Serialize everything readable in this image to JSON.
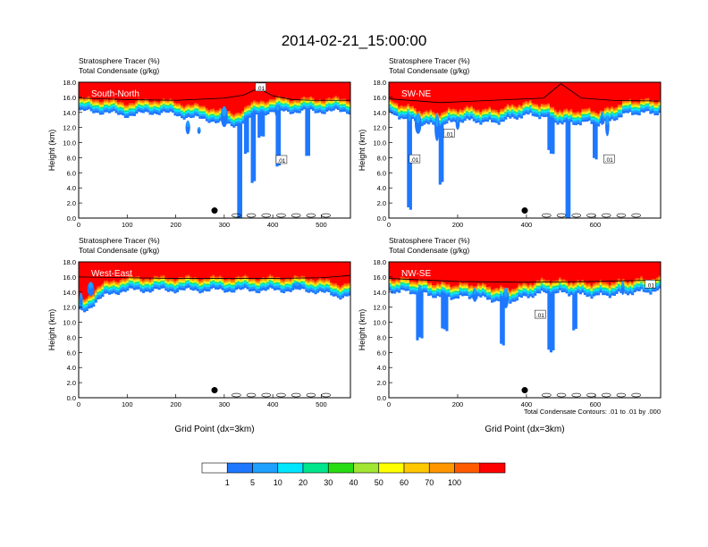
{
  "figure": {
    "title": "2014-02-21_15:00:00",
    "footnote": "Total Condensate Contours: .01 to .01 by .000"
  },
  "colorbar": {
    "colors": [
      "#ffffff",
      "#1e78ff",
      "#1ea0ff",
      "#00e6ff",
      "#00e68c",
      "#28dc14",
      "#a0e632",
      "#ffff00",
      "#ffc800",
      "#ff9600",
      "#ff5a00",
      "#ff0000"
    ],
    "labels": [
      "1",
      "5",
      "10",
      "20",
      "30",
      "40",
      "50",
      "60",
      "70",
      "100"
    ]
  },
  "chart_data": [
    {
      "type": "heatmap",
      "panel_label": "South-North",
      "title_line1": "Stratosphere Tracer   (%)",
      "title_line2": "Total Condensate   (g/kg)",
      "ylabel": "Height (km)",
      "xlabel": "",
      "xlim": [
        0,
        560
      ],
      "ylim": [
        0,
        18
      ],
      "xticks": [
        "0",
        "100",
        "200",
        "300",
        "400",
        "500"
      ],
      "yticks": [
        "0.0",
        "2.0",
        "4.0",
        "6.0",
        "8.0",
        "10.0",
        "12.0",
        "14.0",
        "16.0",
        "18.0"
      ],
      "marker": {
        "x": 280,
        "y": 1.0
      },
      "contour_labels": [
        {
          "text": ".01",
          "x": 375,
          "y": 17.3
        },
        {
          "text": ".01",
          "x": 418,
          "y": 7.7
        }
      ],
      "tropopause": [
        [
          0,
          15.9
        ],
        [
          100,
          15.7
        ],
        [
          200,
          15.6
        ],
        [
          300,
          15.9
        ],
        [
          340,
          16.3
        ],
        [
          370,
          17.2
        ],
        [
          400,
          16.2
        ],
        [
          440,
          15.7
        ],
        [
          480,
          15.6
        ],
        [
          560,
          15.6
        ]
      ]
    },
    {
      "type": "heatmap",
      "panel_label": "SW-NE",
      "title_line1": "Stratosphere Tracer   (%)",
      "title_line2": "Total Condensate   (g/kg)",
      "ylabel": "Height (km)",
      "xlabel": "",
      "xlim": [
        0,
        790
      ],
      "ylim": [
        0,
        18
      ],
      "xticks": [
        "0",
        "200",
        "400",
        "600"
      ],
      "yticks": [
        "0.0",
        "2.0",
        "4.0",
        "6.0",
        "8.0",
        "10.0",
        "12.0",
        "14.0",
        "16.0",
        "18.0"
      ],
      "marker": {
        "x": 395,
        "y": 1.0
      },
      "contour_labels": [
        {
          "text": ".01",
          "x": 75,
          "y": 7.8
        },
        {
          "text": ".01",
          "x": 175,
          "y": 11.2
        },
        {
          "text": ".01",
          "x": 640,
          "y": 7.8
        }
      ],
      "tropopause": [
        [
          0,
          15.8
        ],
        [
          150,
          15.3
        ],
        [
          300,
          15.6
        ],
        [
          450,
          15.9
        ],
        [
          500,
          17.8
        ],
        [
          560,
          15.9
        ],
        [
          650,
          15.6
        ],
        [
          790,
          15.5
        ]
      ]
    },
    {
      "type": "heatmap",
      "panel_label": "West-East",
      "title_line1": "Stratosphere Tracer   (%)",
      "title_line2": "Total Condensate   (g/kg)",
      "ylabel": "Height (km)",
      "xlabel": "Grid Point (dx=3km)",
      "xlim": [
        0,
        560
      ],
      "ylim": [
        0,
        18
      ],
      "xticks": [
        "0",
        "100",
        "200",
        "300",
        "400",
        "500"
      ],
      "yticks": [
        "0.0",
        "2.0",
        "4.0",
        "6.0",
        "8.0",
        "10.0",
        "12.0",
        "14.0",
        "16.0",
        "18.0"
      ],
      "marker": {
        "x": 280,
        "y": 1.0
      },
      "contour_labels": [],
      "tropopause": [
        [
          0,
          16.0
        ],
        [
          100,
          15.9
        ],
        [
          200,
          15.8
        ],
        [
          300,
          15.8
        ],
        [
          400,
          15.8
        ],
        [
          500,
          15.9
        ],
        [
          560,
          16.2
        ]
      ]
    },
    {
      "type": "heatmap",
      "panel_label": "NW-SE",
      "title_line1": "Stratosphere Tracer   (%)",
      "title_line2": "Total Condensate   (g/kg)",
      "ylabel": "Height (km)",
      "xlabel": "Grid Point (dx=3km)",
      "xlim": [
        0,
        790
      ],
      "ylim": [
        0,
        18
      ],
      "xticks": [
        "0",
        "200",
        "400",
        "600"
      ],
      "yticks": [
        "0.0",
        "2.0",
        "4.0",
        "6.0",
        "8.0",
        "10.0",
        "12.0",
        "14.0",
        "16.0",
        "18.0"
      ],
      "marker": {
        "x": 395,
        "y": 1.0
      },
      "contour_labels": [
        {
          "text": ".01",
          "x": 440,
          "y": 11.0
        },
        {
          "text": ".01",
          "x": 760,
          "y": 15.0
        }
      ],
      "tropopause": [
        [
          0,
          15.8
        ],
        [
          200,
          15.4
        ],
        [
          400,
          15.3
        ],
        [
          600,
          15.4
        ],
        [
          790,
          15.6
        ]
      ]
    }
  ]
}
